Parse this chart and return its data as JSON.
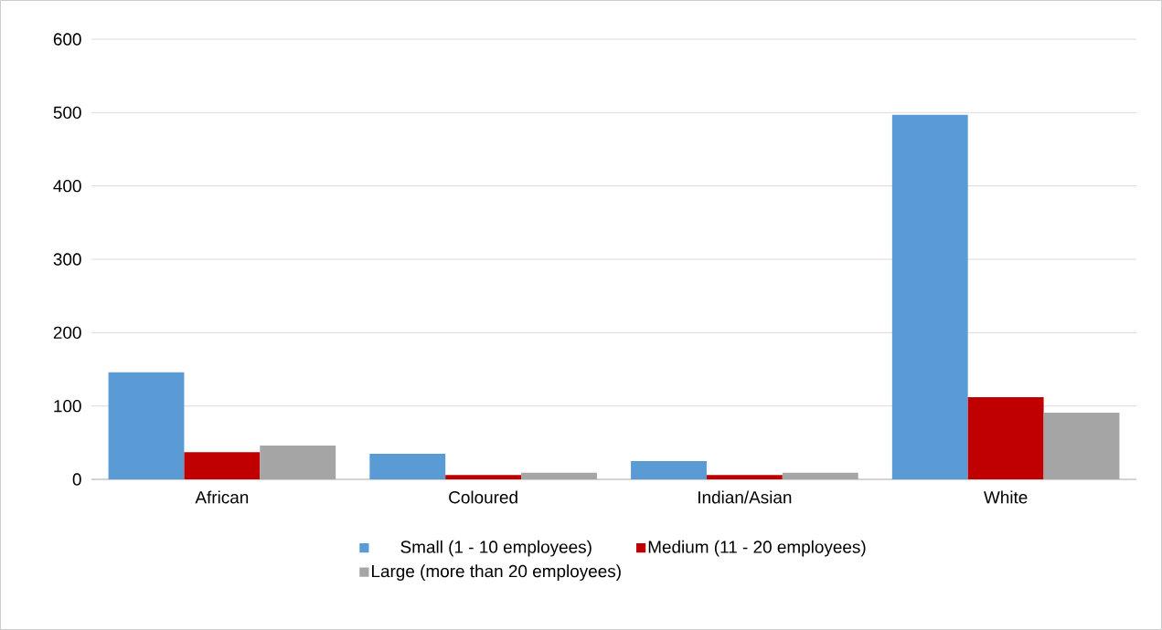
{
  "chart_data": {
    "type": "bar",
    "categories": [
      "African",
      "Coloured",
      "Indian/Asian",
      "White"
    ],
    "series": [
      {
        "name": "Small (1 - 10 employees)",
        "color": "#5b9bd5",
        "values": [
          146,
          35,
          25,
          497
        ]
      },
      {
        "name": "Medium (11 - 20 employees)",
        "color": "#c00000",
        "values": [
          37,
          6,
          6,
          112
        ]
      },
      {
        "name": "Large (more than 20 employees)",
        "color": "#a5a5a5",
        "values": [
          46,
          9,
          9,
          91
        ]
      }
    ],
    "ylim": [
      0,
      600
    ],
    "yticks": [
      0,
      100,
      200,
      300,
      400,
      500,
      600
    ],
    "grid": "y",
    "legend": "bottom"
  }
}
